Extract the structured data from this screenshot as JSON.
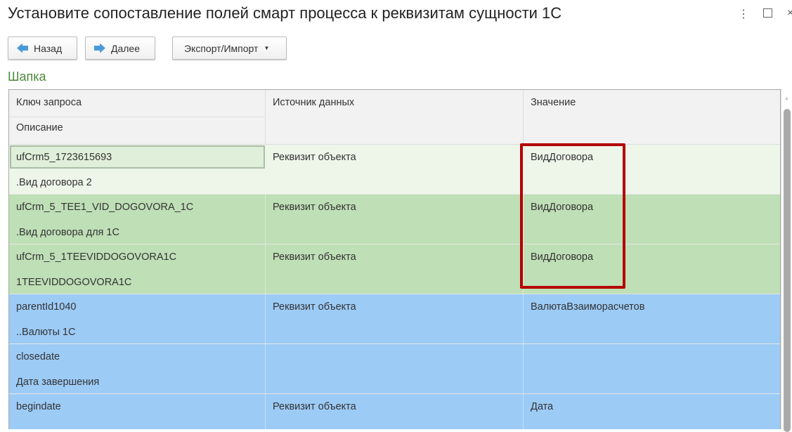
{
  "window": {
    "title": "Установите сопоставление полей смарт процесса к реквизитам сущности 1С"
  },
  "toolbar": {
    "back": "Назад",
    "next": "Далее",
    "export_import": "Экспорт/Импорт"
  },
  "section": "Шапка",
  "table": {
    "headers": {
      "key": "Ключ запроса",
      "description": "Описание",
      "source": "Источник данных",
      "value": "Значение"
    },
    "rows": [
      {
        "key": "ufCrm5_1723615693",
        "description": ".Вид договора 2",
        "source": "Реквизит объекта",
        "value": "ВидДоговора",
        "color": "#eef6ea"
      },
      {
        "key": "ufCrm_5_TEE1_VID_DOGOVORA_1C",
        "description": ".Вид договора для 1С",
        "source": "Реквизит объекта",
        "value": "ВидДоговора",
        "color": "#bfdfb6"
      },
      {
        "key": "ufCrm_5_1TEEVIDDOGOVORA1C",
        "description": "1TEEVIDDOGOVORA1C",
        "source": "Реквизит объекта",
        "value": "ВидДоговора",
        "color": "#bfdfb6"
      },
      {
        "key": "parentId1040",
        "description": "..Валюты 1С",
        "source": "Реквизит объекта",
        "value": "ВалютаВзаиморасчетов",
        "color": "#9ccbf6"
      },
      {
        "key": "closedate",
        "description": "Дата завершения",
        "source": "",
        "value": "",
        "color": "#9ccbf6"
      },
      {
        "key": "begindate",
        "description": "",
        "source": "Реквизит объекта",
        "value": "Дата",
        "color": "#9ccbf6"
      }
    ]
  },
  "highlight_color": "#b30000"
}
